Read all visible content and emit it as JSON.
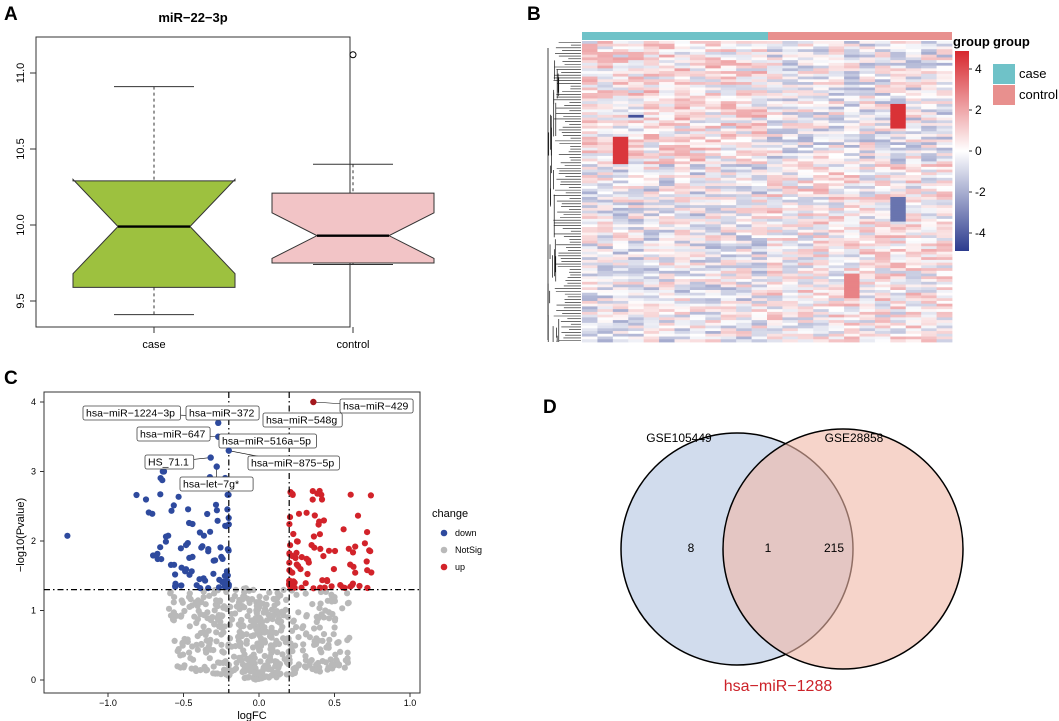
{
  "panels": {
    "A": {
      "letter": "A"
    },
    "B": {
      "letter": "B"
    },
    "C": {
      "letter": "C"
    },
    "D": {
      "letter": "D"
    }
  },
  "chart_data": [
    {
      "type": "boxplot",
      "panel": "A",
      "title": "miR−22−3p",
      "categories": [
        "case",
        "control"
      ],
      "yticks": [
        "9.5",
        "10.0",
        "10.5",
        "11.0"
      ],
      "ylim": [
        9.35,
        11.2
      ],
      "notched": true,
      "series": [
        {
          "name": "case",
          "min": 9.41,
          "q1": 9.59,
          "median": 9.99,
          "q3": 10.29,
          "max": 10.91,
          "notch_low": 9.68,
          "notch_high": 10.3,
          "outliers": [],
          "color": "#9dc13f"
        },
        {
          "name": "control",
          "min": 9.74,
          "q1": 9.75,
          "median": 9.93,
          "q3": 10.21,
          "max": 10.4,
          "notch_low": 9.78,
          "notch_high": 10.08,
          "outliers": [
            11.12
          ],
          "color": "#f2c4c6"
        }
      ]
    },
    {
      "type": "heatmap",
      "panel": "B",
      "legend_title": "group",
      "groups": [
        {
          "name": "case",
          "color": "#6fc2c8"
        },
        {
          "name": "control",
          "color": "#e8908e"
        }
      ],
      "scale_ticks": [
        "4",
        "2",
        "0",
        "-2",
        "-4"
      ],
      "colors": {
        "low": "#2c3b8e",
        "mid": "#ffffff",
        "high": "#d7282e"
      }
    },
    {
      "type": "scatter",
      "panel": "C",
      "xlabel": "logFC",
      "ylabel": "−log10(Pvalue)",
      "xticks": [
        "−1.0",
        "−0.5",
        "0.0",
        "0.5",
        "1.0"
      ],
      "yticks": [
        "0",
        "1",
        "2",
        "3",
        "4"
      ],
      "xlim": [
        -1.35,
        1.0
      ],
      "ylim": [
        0,
        4.1
      ],
      "thresholds": {
        "logFC": [
          -0.2,
          0.2
        ],
        "neglog10p": 1.3
      },
      "legend_title": "change",
      "categories": [
        {
          "name": "down",
          "color": "#2e4a9e"
        },
        {
          "name": "NotSig",
          "color": "#b9b9b9"
        },
        {
          "name": "up",
          "color": "#d2232a"
        }
      ],
      "labeled_points": [
        {
          "label": "hsa−miR−1224−3p",
          "x": -0.4,
          "y": 3.8,
          "change": "down"
        },
        {
          "label": "hsa−miR−372",
          "x": -0.27,
          "y": 3.7,
          "change": "down"
        },
        {
          "label": "hsa−miR−647",
          "x": -0.27,
          "y": 3.5,
          "change": "down"
        },
        {
          "label": "hsa−miR−516a−5p",
          "x": -0.22,
          "y": 3.4,
          "change": "down"
        },
        {
          "label": "HS_71.1",
          "x": -0.32,
          "y": 3.2,
          "change": "down"
        },
        {
          "label": "hsa−miR−875−5p",
          "x": -0.2,
          "y": 3.3,
          "change": "down"
        },
        {
          "label": "hsa−let−7g*",
          "x": -0.28,
          "y": 3.07,
          "change": "down"
        },
        {
          "label": "hsa−miR−429",
          "x": 0.36,
          "y": 4.0,
          "change": "up"
        },
        {
          "label": "hsa−miR−548g",
          "x": 0.22,
          "y": 3.8,
          "change": "up"
        }
      ]
    },
    {
      "type": "venn",
      "panel": "D",
      "sets": [
        {
          "name": "GSE105449",
          "only": "8",
          "color": "#c9d6ea"
        },
        {
          "name": "GSE28858",
          "only": "215",
          "color": "#f3c6b6"
        }
      ],
      "intersection": "1",
      "caption": "hsa−miR−1288",
      "caption_color": "#cc2229"
    }
  ]
}
